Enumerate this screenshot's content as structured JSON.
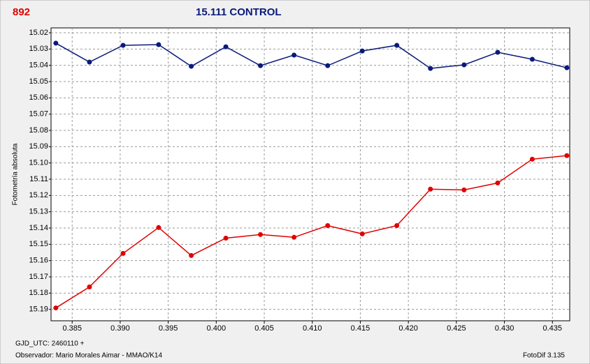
{
  "chart_data": {
    "type": "line",
    "ylabel": "Fotometría absoluta",
    "footer_left_1": "GJD_UTC: 2460110 +",
    "footer_left_2": "Observador: Mario Morales Aimar - MMAO/K14",
    "footer_right": "FotoDif 3.135",
    "x": [
      0.3833,
      0.3868,
      0.3903,
      0.394,
      0.3974,
      0.401,
      0.4046,
      0.4081,
      0.4116,
      0.4152,
      0.4188,
      0.4223,
      0.4258,
      0.4293,
      0.4329,
      0.4365
    ],
    "series": [
      {
        "name": "15.111 CONTROL",
        "color": "#0a1a7a",
        "values": [
          15.0264,
          15.038,
          15.0277,
          15.0273,
          15.0406,
          15.0286,
          15.0402,
          15.0337,
          15.0402,
          15.0312,
          15.0277,
          15.0419,
          15.0397,
          15.032,
          15.0363,
          15.0415
        ]
      },
      {
        "name": "892",
        "color": "#e00000",
        "values": [
          15.1891,
          15.1762,
          15.1556,
          15.1397,
          15.1569,
          15.1462,
          15.144,
          15.1457,
          15.1385,
          15.1436,
          15.1385,
          15.1161,
          15.1166,
          15.1123,
          15.0977,
          15.0955
        ]
      }
    ],
    "xlim": [
      0.3828,
      0.4368
    ],
    "xticks": [
      0.385,
      {
        "value": 0.39,
        "label": "0.390"
      },
      0.395,
      {
        "value": 0.4,
        "label": "0.400"
      },
      0.405,
      {
        "value": 0.41,
        "label": "0.410"
      },
      0.415,
      {
        "value": 0.42,
        "label": "0.420"
      },
      0.425,
      {
        "value": 0.43,
        "label": "0.430"
      },
      0.435
    ],
    "ylim": [
      15.197,
      15.017
    ],
    "yticks": [
      15.02,
      15.03,
      15.04,
      15.05,
      15.06,
      15.07,
      15.08,
      15.09,
      {
        "value": 15.1,
        "label": "15.10"
      },
      15.11,
      15.12,
      15.13,
      15.14,
      15.15,
      15.16,
      15.17,
      15.18,
      15.19
    ],
    "grid": true
  }
}
